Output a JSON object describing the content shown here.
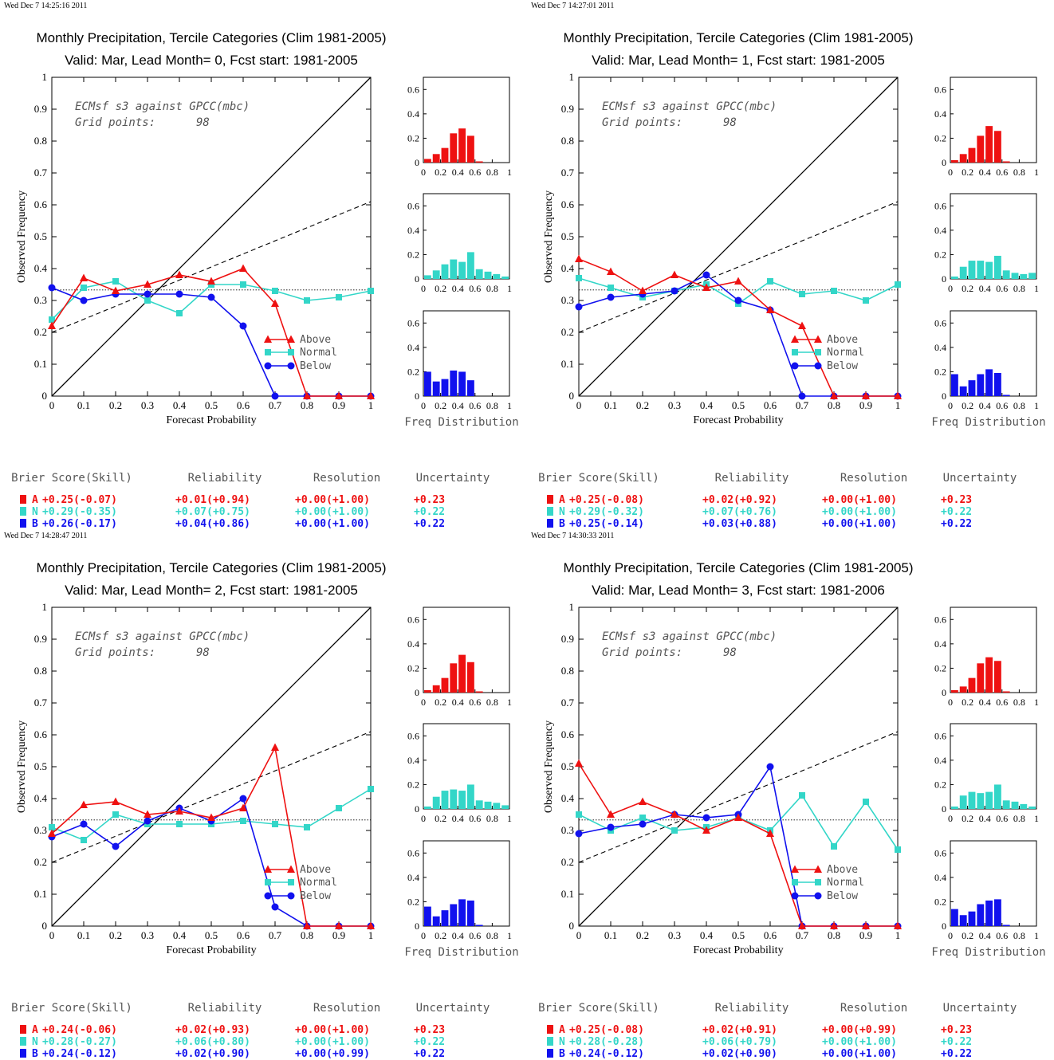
{
  "colors": {
    "above": "#ee1111",
    "normal": "#33d6c8",
    "below": "#1111ee",
    "axis": "#000000"
  },
  "labels": {
    "x_axis": "Forecast Probability",
    "y_axis": "Observed Frequency",
    "hist_caption": "Freq Distribution",
    "dataset_line": "ECMsf s3 against GPCC(mbc)",
    "grid_label": "Grid points:",
    "grid_value": "98",
    "legend": [
      "Above",
      "Normal",
      "Below"
    ],
    "score_headers": [
      "Brier Score(Skill)",
      "Reliability",
      "Resolution",
      "Uncertainty"
    ],
    "row_letters": [
      "A",
      "N",
      "B"
    ]
  },
  "chart_data": [
    {
      "type": "line",
      "timestamp": "Wed Dec  7 14:25:16 2011",
      "title": "Monthly Precipitation, Tercile Categories (Clim 1981-2005)",
      "subtitle": "Valid: Mar, Lead Month= 0, Fcst start: 1981-2005",
      "xlim": [
        0,
        1
      ],
      "ylim": [
        0,
        1
      ],
      "x": [
        0,
        0.1,
        0.2,
        0.3,
        0.4,
        0.5,
        0.6,
        0.7,
        0.8,
        0.9,
        1
      ],
      "series": [
        {
          "name": "Above",
          "values": [
            0.22,
            0.37,
            0.33,
            0.35,
            0.38,
            0.36,
            0.4,
            0.29,
            0,
            0,
            0
          ]
        },
        {
          "name": "Normal",
          "values": [
            0.24,
            0.34,
            0.36,
            0.3,
            0.26,
            0.35,
            0.35,
            0.33,
            0.3,
            0.31,
            0.33
          ]
        },
        {
          "name": "Below",
          "values": [
            0.34,
            0.3,
            0.32,
            0.32,
            0.32,
            0.31,
            0.22,
            0,
            0,
            0,
            0
          ]
        }
      ],
      "climatology": 0.333,
      "skill_line": [
        [
          0,
          0.2
        ],
        [
          1,
          0.61
        ]
      ],
      "histograms": {
        "bins": [
          0.05,
          0.15,
          0.25,
          0.35,
          0.45,
          0.55,
          0.65,
          0.75,
          0.85,
          0.95
        ],
        "above": [
          0.03,
          0.07,
          0.12,
          0.24,
          0.28,
          0.22,
          0.01,
          0,
          0,
          0
        ],
        "normal": [
          0.03,
          0.07,
          0.12,
          0.16,
          0.14,
          0.22,
          0.08,
          0.06,
          0.04,
          0.02
        ],
        "below": [
          0.2,
          0.12,
          0.14,
          0.21,
          0.2,
          0.13,
          0,
          0,
          0,
          0
        ]
      },
      "scores": {
        "above": [
          "+0.25(-0.07)",
          "+0.01(+0.94)",
          "+0.00(+1.00)",
          "+0.23"
        ],
        "normal": [
          "+0.29(-0.35)",
          "+0.07(+0.75)",
          "+0.00(+1.00)",
          "+0.22"
        ],
        "below": [
          "+0.26(-0.17)",
          "+0.04(+0.86)",
          "+0.00(+1.00)",
          "+0.22"
        ]
      }
    },
    {
      "type": "line",
      "timestamp": "Wed Dec  7 14:27:01 2011",
      "title": "Monthly Precipitation, Tercile Categories (Clim 1981-2005)",
      "subtitle": "Valid: Mar, Lead Month= 1, Fcst start: 1981-2005",
      "xlim": [
        0,
        1
      ],
      "ylim": [
        0,
        1
      ],
      "x": [
        0,
        0.1,
        0.2,
        0.3,
        0.4,
        0.5,
        0.6,
        0.7,
        0.8,
        0.9,
        1
      ],
      "series": [
        {
          "name": "Above",
          "values": [
            0.43,
            0.39,
            0.33,
            0.38,
            0.34,
            0.36,
            0.27,
            0.22,
            0,
            0,
            0
          ]
        },
        {
          "name": "Normal",
          "values": [
            0.37,
            0.34,
            0.31,
            0.33,
            0.35,
            0.29,
            0.36,
            0.32,
            0.33,
            0.3,
            0.35
          ]
        },
        {
          "name": "Below",
          "values": [
            0.28,
            0.31,
            0.32,
            0.33,
            0.38,
            0.3,
            0.27,
            0,
            0,
            0,
            0
          ]
        }
      ],
      "climatology": 0.333,
      "skill_line": [
        [
          0,
          0.2
        ],
        [
          1,
          0.61
        ]
      ],
      "histograms": {
        "bins": [
          0.05,
          0.15,
          0.25,
          0.35,
          0.45,
          0.55,
          0.65,
          0.75,
          0.85,
          0.95
        ],
        "above": [
          0.02,
          0.07,
          0.12,
          0.22,
          0.3,
          0.26,
          0.01,
          0,
          0,
          0
        ],
        "normal": [
          0.02,
          0.1,
          0.15,
          0.15,
          0.14,
          0.19,
          0.07,
          0.05,
          0.04,
          0.05
        ],
        "below": [
          0.18,
          0.08,
          0.13,
          0.18,
          0.22,
          0.19,
          0.01,
          0,
          0,
          0
        ]
      },
      "scores": {
        "above": [
          "+0.25(-0.08)",
          "+0.02(+0.92)",
          "+0.00(+1.00)",
          "+0.23"
        ],
        "normal": [
          "+0.29(-0.32)",
          "+0.07(+0.76)",
          "+0.00(+1.00)",
          "+0.22"
        ],
        "below": [
          "+0.25(-0.14)",
          "+0.03(+0.88)",
          "+0.00(+1.00)",
          "+0.22"
        ]
      }
    },
    {
      "type": "line",
      "timestamp": "Wed Dec  7 14:28:47 2011",
      "title": "Monthly Precipitation, Tercile Categories (Clim 1981-2005)",
      "subtitle": "Valid: Mar, Lead Month= 2, Fcst start: 1981-2005",
      "xlim": [
        0,
        1
      ],
      "ylim": [
        0,
        1
      ],
      "x": [
        0,
        0.1,
        0.2,
        0.3,
        0.4,
        0.5,
        0.6,
        0.7,
        0.8,
        0.9,
        1
      ],
      "series": [
        {
          "name": "Above",
          "values": [
            0.29,
            0.38,
            0.39,
            0.35,
            0.36,
            0.34,
            0.37,
            0.56,
            0,
            0,
            0
          ]
        },
        {
          "name": "Normal",
          "values": [
            0.31,
            0.27,
            0.35,
            0.32,
            0.32,
            0.32,
            0.33,
            0.32,
            0.31,
            0.37,
            0.43
          ]
        },
        {
          "name": "Below",
          "values": [
            0.28,
            0.32,
            0.25,
            0.33,
            0.37,
            0.33,
            0.4,
            0.06,
            0,
            0,
            0
          ]
        }
      ],
      "climatology": 0.333,
      "skill_line": [
        [
          0,
          0.2
        ],
        [
          1,
          0.61
        ]
      ],
      "histograms": {
        "bins": [
          0.05,
          0.15,
          0.25,
          0.35,
          0.45,
          0.55,
          0.65,
          0.75,
          0.85,
          0.95
        ],
        "above": [
          0.02,
          0.06,
          0.12,
          0.24,
          0.31,
          0.25,
          0.01,
          0,
          0,
          0
        ],
        "normal": [
          0.02,
          0.1,
          0.15,
          0.16,
          0.15,
          0.2,
          0.07,
          0.06,
          0.05,
          0.03
        ],
        "below": [
          0.16,
          0.08,
          0.13,
          0.18,
          0.22,
          0.21,
          0.01,
          0,
          0,
          0
        ]
      },
      "scores": {
        "above": [
          "+0.24(-0.06)",
          "+0.02(+0.93)",
          "+0.00(+1.00)",
          "+0.23"
        ],
        "normal": [
          "+0.28(-0.27)",
          "+0.06(+0.80)",
          "+0.00(+1.00)",
          "+0.22"
        ],
        "below": [
          "+0.24(-0.12)",
          "+0.02(+0.90)",
          "+0.00(+0.99)",
          "+0.22"
        ]
      }
    },
    {
      "type": "line",
      "timestamp": "Wed Dec  7 14:30:33 2011",
      "title": "Monthly Precipitation, Tercile Categories (Clim 1981-2005)",
      "subtitle": "Valid: Mar, Lead Month= 3, Fcst start: 1981-2006",
      "xlim": [
        0,
        1
      ],
      "ylim": [
        0,
        1
      ],
      "x": [
        0,
        0.1,
        0.2,
        0.3,
        0.4,
        0.5,
        0.6,
        0.7,
        0.8,
        0.9,
        1
      ],
      "series": [
        {
          "name": "Above",
          "values": [
            0.51,
            0.35,
            0.39,
            0.35,
            0.3,
            0.34,
            0.29,
            0,
            0,
            0,
            0
          ]
        },
        {
          "name": "Normal",
          "values": [
            0.35,
            0.3,
            0.34,
            0.3,
            0.31,
            0.34,
            0.3,
            0.41,
            0.25,
            0.39,
            0.24
          ]
        },
        {
          "name": "Below",
          "values": [
            0.29,
            0.31,
            0.32,
            0.35,
            0.34,
            0.35,
            0.5,
            0,
            0,
            0,
            0
          ]
        }
      ],
      "climatology": 0.333,
      "skill_line": [
        [
          0,
          0.2
        ],
        [
          1,
          0.61
        ]
      ],
      "histograms": {
        "bins": [
          0.05,
          0.15,
          0.25,
          0.35,
          0.45,
          0.55,
          0.65,
          0.75,
          0.85,
          0.95
        ],
        "above": [
          0.02,
          0.05,
          0.12,
          0.24,
          0.29,
          0.26,
          0.01,
          0,
          0,
          0
        ],
        "normal": [
          0.02,
          0.11,
          0.14,
          0.13,
          0.14,
          0.2,
          0.07,
          0.06,
          0.04,
          0.02
        ],
        "below": [
          0.14,
          0.09,
          0.12,
          0.18,
          0.21,
          0.22,
          0.01,
          0,
          0,
          0
        ]
      },
      "scores": {
        "above": [
          "+0.25(-0.08)",
          "+0.02(+0.91)",
          "+0.00(+0.99)",
          "+0.23"
        ],
        "normal": [
          "+0.28(-0.28)",
          "+0.06(+0.79)",
          "+0.00(+1.00)",
          "+0.22"
        ],
        "below": [
          "+0.24(-0.12)",
          "+0.02(+0.90)",
          "+0.00(+1.00)",
          "+0.22"
        ]
      }
    }
  ]
}
